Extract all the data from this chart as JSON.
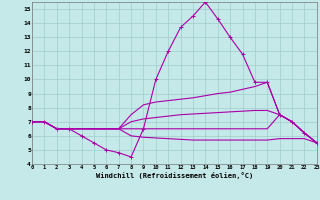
{
  "background_color": "#c5e8e8",
  "grid_color": "#a0cccc",
  "line_color": "#aa00aa",
  "xlim": [
    0,
    23
  ],
  "ylim": [
    4,
    15.5
  ],
  "yticks": [
    4,
    5,
    6,
    7,
    8,
    9,
    10,
    11,
    12,
    13,
    14,
    15
  ],
  "xticks": [
    0,
    1,
    2,
    3,
    4,
    5,
    6,
    7,
    8,
    9,
    10,
    11,
    12,
    13,
    14,
    15,
    16,
    17,
    18,
    19,
    20,
    21,
    22,
    23
  ],
  "xlabel": "Windchill (Refroidissement éolien,°C)",
  "s0": [
    7.0,
    7.0,
    6.5,
    6.5,
    6.0,
    5.5,
    5.0,
    4.8,
    4.5,
    6.5,
    10.0,
    12.0,
    13.7,
    14.5,
    15.5,
    14.3,
    13.0,
    11.8,
    9.8,
    9.8,
    7.5,
    7.0,
    6.2,
    5.5
  ],
  "s1": [
    7.0,
    7.0,
    6.5,
    6.5,
    6.5,
    6.5,
    6.5,
    6.5,
    7.5,
    8.2,
    8.4,
    8.5,
    8.6,
    8.7,
    8.85,
    9.0,
    9.1,
    9.3,
    9.5,
    9.8,
    7.5,
    7.0,
    6.2,
    5.5
  ],
  "s2": [
    7.0,
    7.0,
    6.5,
    6.5,
    6.5,
    6.5,
    6.5,
    6.5,
    7.0,
    7.2,
    7.3,
    7.4,
    7.5,
    7.55,
    7.6,
    7.65,
    7.7,
    7.75,
    7.8,
    7.8,
    7.5,
    7.0,
    6.2,
    5.5
  ],
  "s3": [
    7.0,
    7.0,
    6.5,
    6.5,
    6.5,
    6.5,
    6.5,
    6.5,
    6.5,
    6.5,
    6.5,
    6.5,
    6.5,
    6.5,
    6.5,
    6.5,
    6.5,
    6.5,
    6.5,
    6.5,
    7.5,
    7.0,
    6.2,
    5.5
  ],
  "s4": [
    7.0,
    7.0,
    6.5,
    6.5,
    6.5,
    6.5,
    6.5,
    6.5,
    6.0,
    5.9,
    5.85,
    5.8,
    5.75,
    5.7,
    5.7,
    5.7,
    5.7,
    5.7,
    5.7,
    5.7,
    5.8,
    5.8,
    5.8,
    5.5
  ]
}
